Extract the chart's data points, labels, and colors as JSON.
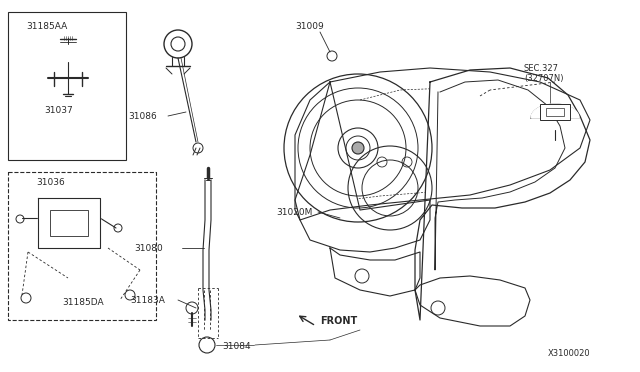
{
  "bg_color": "#ffffff",
  "line_color": "#2a2a2a",
  "diagram_id": "X3100020",
  "parts": {
    "31185AA": "31185AA",
    "31037": "31037",
    "31036": "31036",
    "31185DA": "31185DA",
    "31086": "31086",
    "31009": "31009",
    "31080": "31080",
    "31020M": "31020M",
    "31183A": "31183A",
    "31084": "31084",
    "SEC327_a": "SEC.327",
    "SEC327_b": "(32707N)",
    "FRONT": "FRONT"
  },
  "figsize": [
    6.4,
    3.72
  ],
  "dpi": 100
}
